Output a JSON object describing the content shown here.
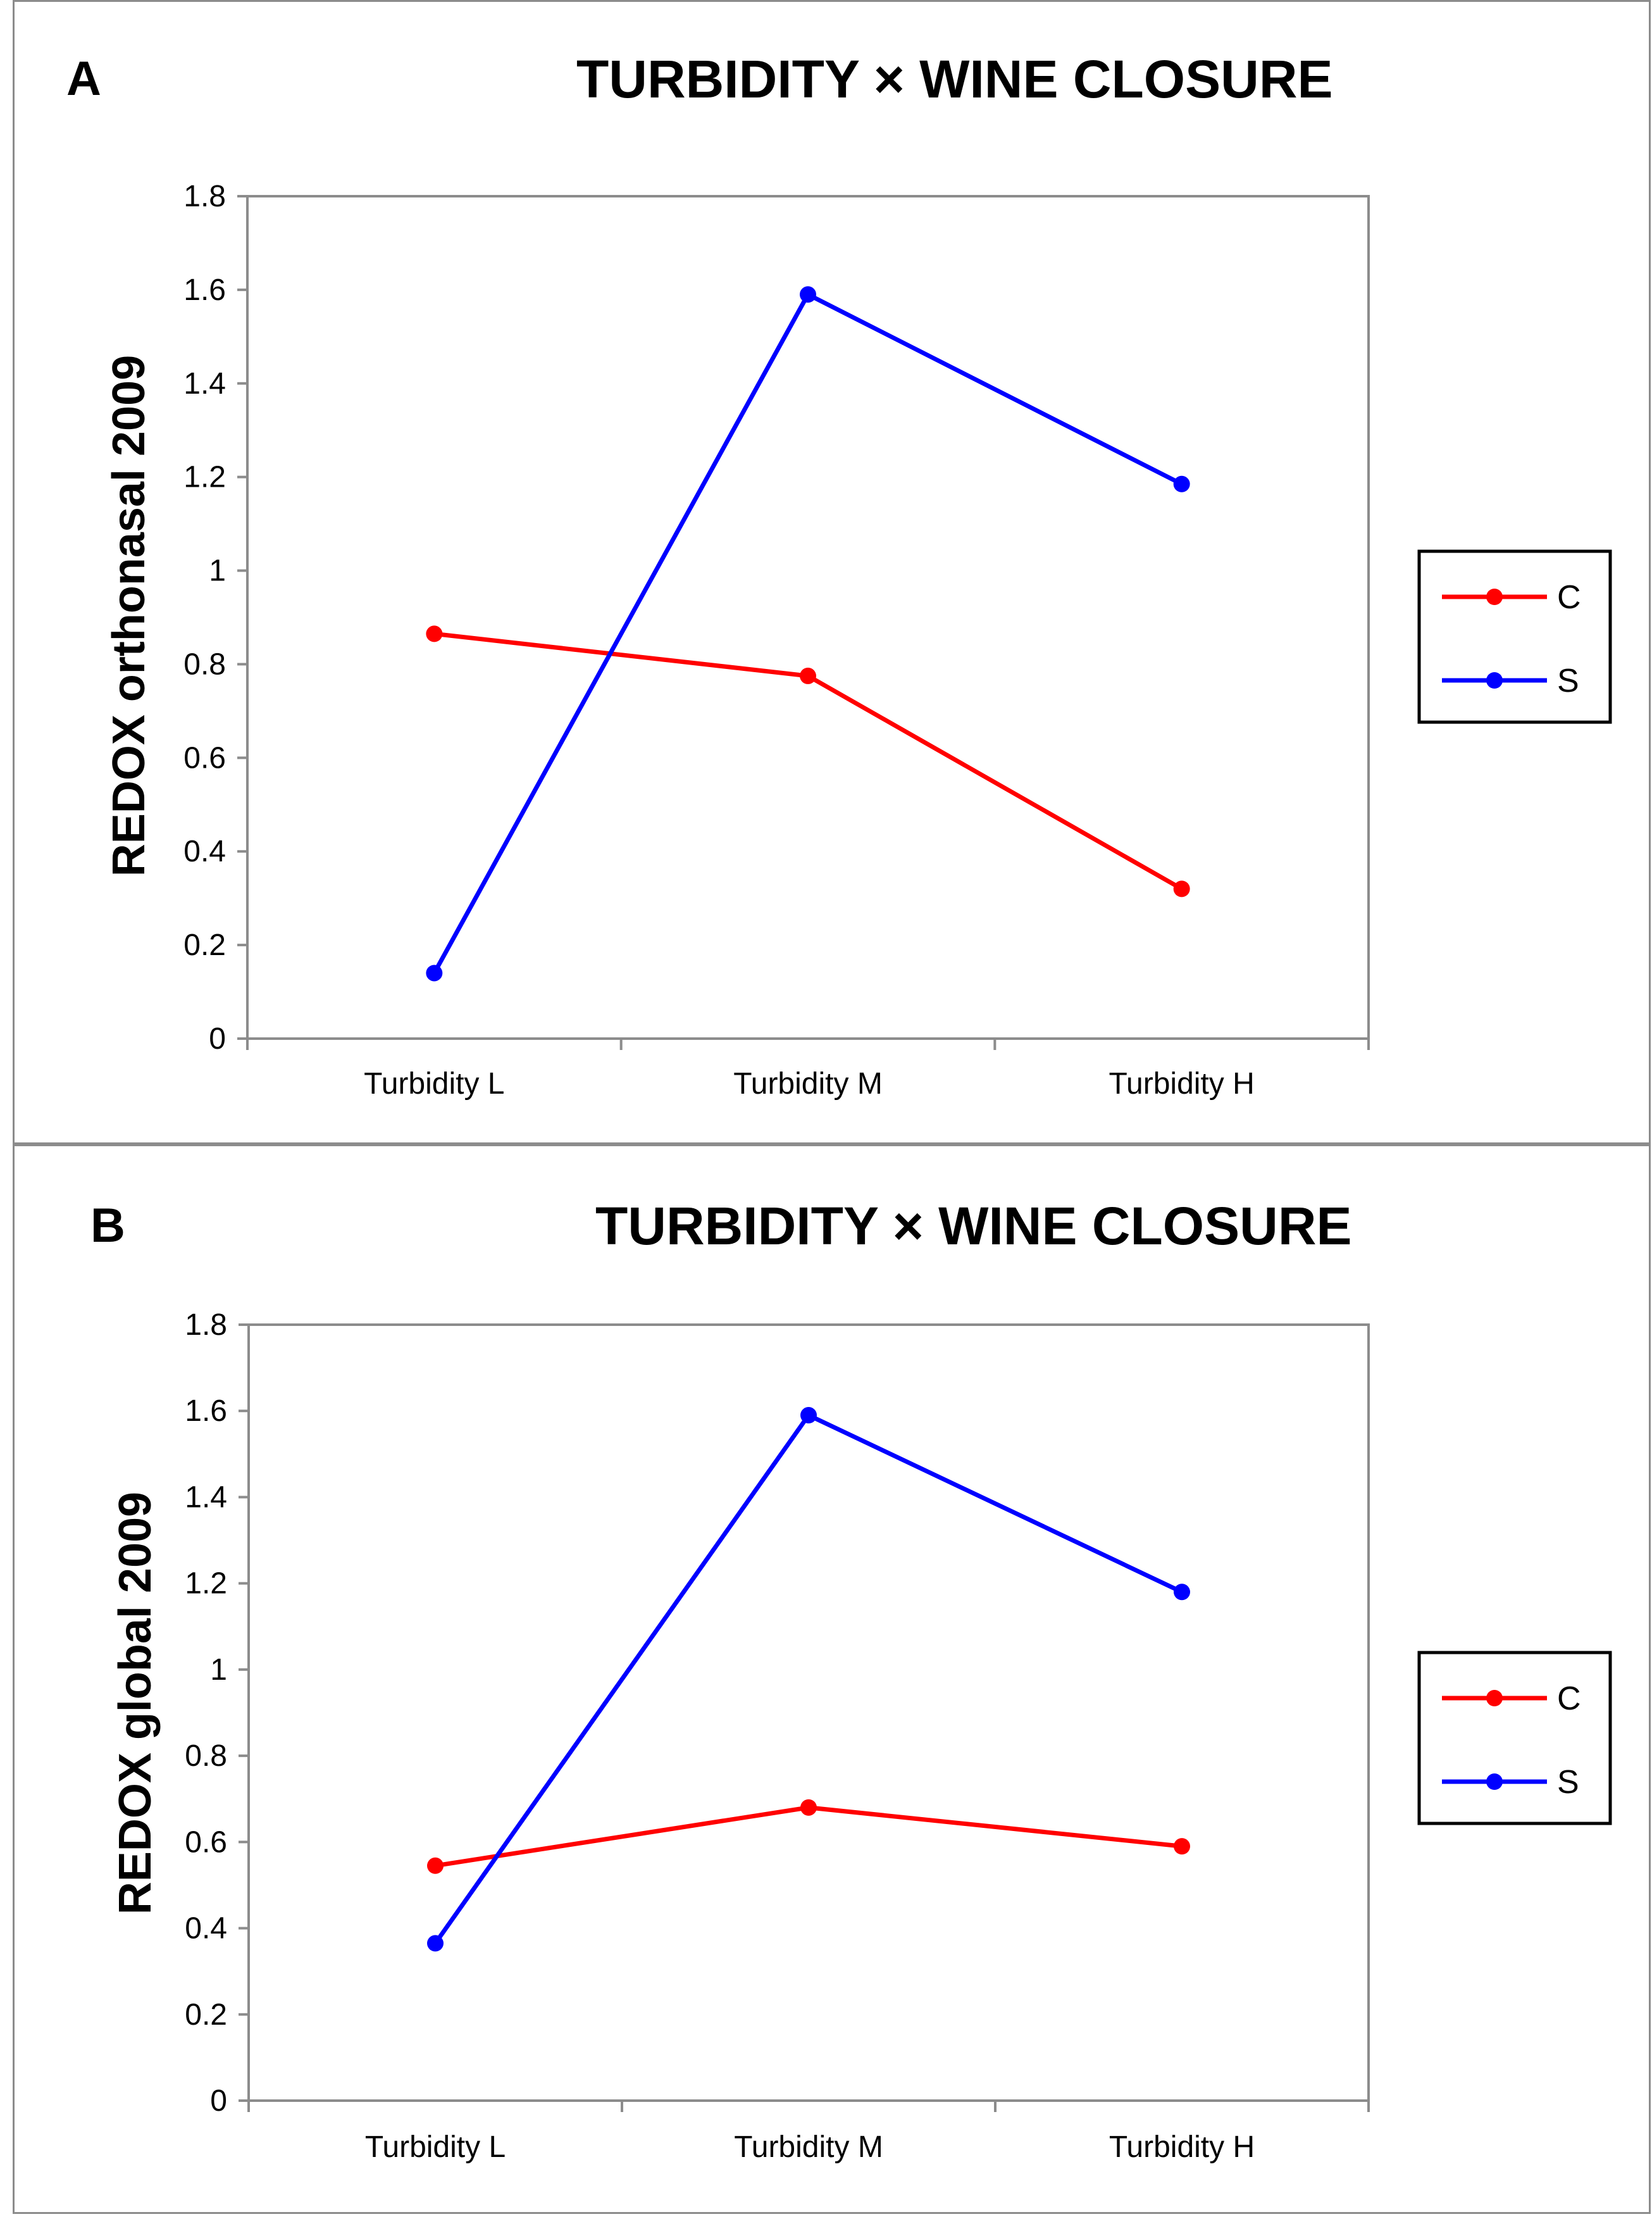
{
  "chart_data": [
    {
      "panel_letter": "A",
      "type": "line",
      "title": "TURBIDITY × WINE CLOSURE",
      "xlabel": "",
      "ylabel": "REDOX orthonasal 2009",
      "categories": [
        "Turbidity L",
        "Turbidity M",
        "Turbidity H"
      ],
      "ylim": [
        0,
        1.8
      ],
      "yticks": [
        "0",
        "0.2",
        "0.4",
        "0.6",
        "0.8",
        "1",
        "1.2",
        "1.4",
        "1.6",
        "1.8"
      ],
      "grid": false,
      "legend_position": "right",
      "series": [
        {
          "name": "C",
          "color": "#ff0000",
          "values": [
            0.865,
            0.775,
            0.32
          ]
        },
        {
          "name": "S",
          "color": "#0000ff",
          "values": [
            0.14,
            1.59,
            1.185
          ]
        }
      ]
    },
    {
      "panel_letter": "B",
      "type": "line",
      "title": "TURBIDITY × WINE CLOSURE",
      "xlabel": "",
      "ylabel": "REDOX global 2009",
      "categories": [
        "Turbidity L",
        "Turbidity M",
        "Turbidity H"
      ],
      "ylim": [
        0,
        1.8
      ],
      "yticks": [
        "0",
        "0.2",
        "0.4",
        "0.6",
        "0.8",
        "1",
        "1.2",
        "1.4",
        "1.6",
        "1.8"
      ],
      "grid": false,
      "legend_position": "right",
      "series": [
        {
          "name": "C",
          "color": "#ff0000",
          "values": [
            0.545,
            0.68,
            0.59
          ]
        },
        {
          "name": "S",
          "color": "#0000ff",
          "values": [
            0.365,
            1.59,
            1.18
          ]
        }
      ]
    }
  ]
}
